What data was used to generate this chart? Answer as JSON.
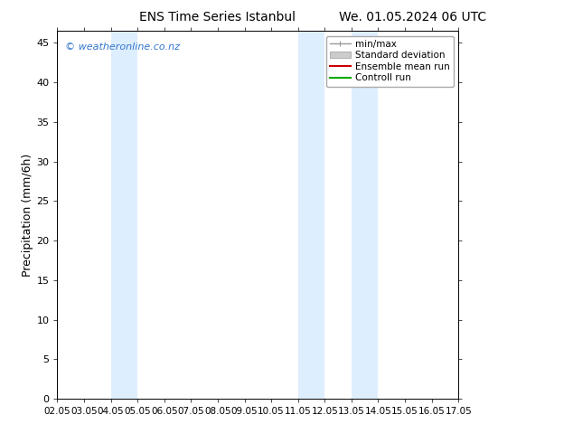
{
  "title": "ENS Time Series Istanbul",
  "title2": "We. 01.05.2024 06 UTC",
  "ylabel": "Precipitation (mm/6h)",
  "xlabel_ticks": [
    "02.05",
    "03.05",
    "04.05",
    "05.05",
    "06.05",
    "07.05",
    "08.05",
    "09.05",
    "10.05",
    "11.05",
    "12.05",
    "13.05",
    "14.05",
    "15.05",
    "16.05",
    "17.05"
  ],
  "xlim": [
    0,
    15
  ],
  "ylim": [
    0,
    46.5
  ],
  "yticks": [
    0,
    5,
    10,
    15,
    20,
    25,
    30,
    35,
    40,
    45
  ],
  "shaded_bands": [
    {
      "xmin": 2.0,
      "xmax": 3.0,
      "color": "#ddeeff"
    },
    {
      "xmin": 9.0,
      "xmax": 10.0,
      "color": "#ddeeff"
    },
    {
      "xmin": 11.0,
      "xmax": 12.0,
      "color": "#ddeeff"
    }
  ],
  "watermark": "© weatheronline.co.nz",
  "watermark_color": "#3377cc",
  "legend_items": [
    {
      "label": "min/max",
      "color": "#999999",
      "lw": 1.0
    },
    {
      "label": "Standard deviation",
      "color": "#cccccc",
      "lw": 6
    },
    {
      "label": "Ensemble mean run",
      "color": "#cc0000",
      "lw": 1.5
    },
    {
      "label": "Controll run",
      "color": "#00aa00",
      "lw": 1.5
    }
  ],
  "background_color": "#ffffff",
  "plot_bg_color": "#ffffff",
  "border_color": "#000000",
  "figsize": [
    6.34,
    4.9
  ],
  "dpi": 100
}
